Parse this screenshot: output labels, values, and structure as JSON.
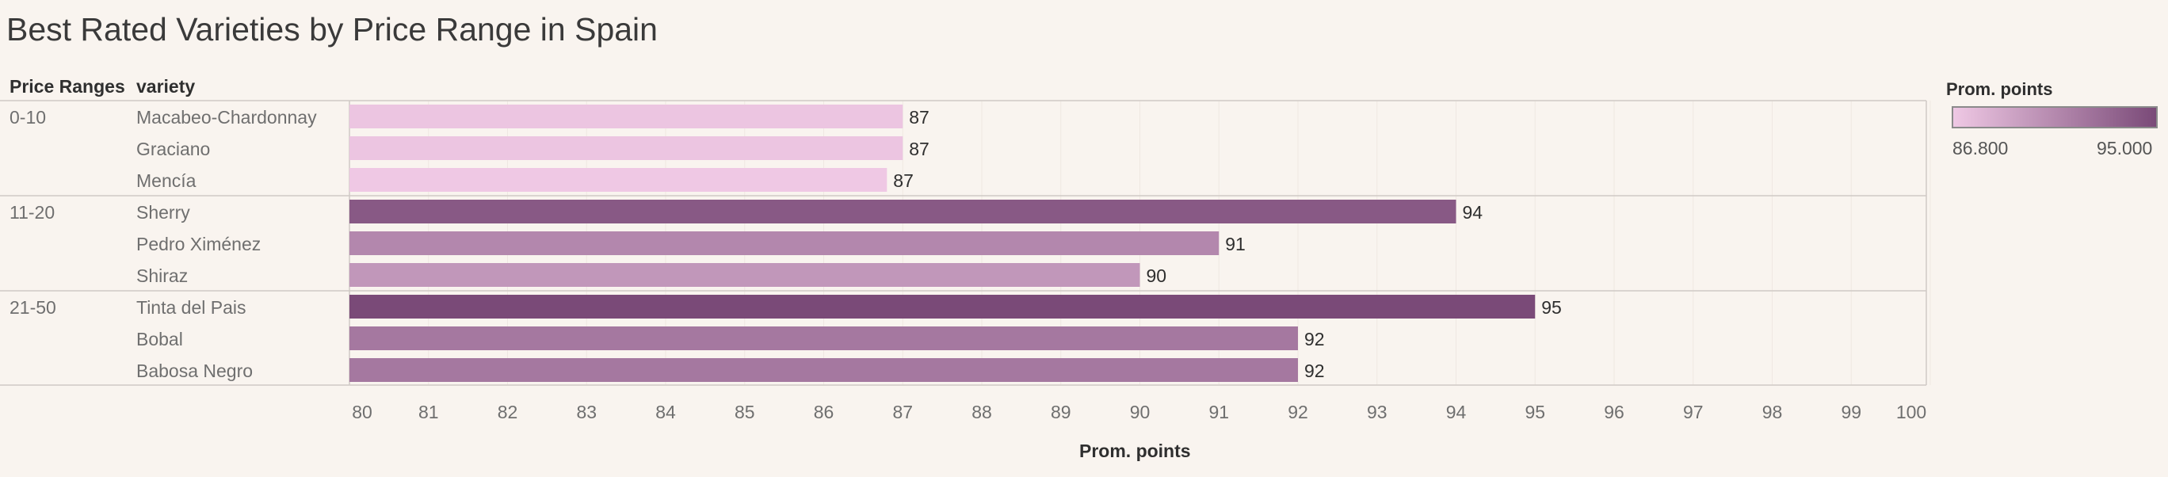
{
  "chart_data": {
    "type": "bar",
    "orientation": "horizontal",
    "title": "Best Rated Varieties by Price Range in Spain",
    "row_headers": [
      "Price Ranges",
      "variety"
    ],
    "xlabel": "Prom. points",
    "xlim": [
      80,
      100
    ],
    "x_ticks": [
      "80",
      "81",
      "82",
      "83",
      "84",
      "85",
      "86",
      "87",
      "88",
      "89",
      "90",
      "91",
      "92",
      "93",
      "94",
      "95",
      "96",
      "97",
      "98",
      "99",
      "100"
    ],
    "grid": "vertical",
    "groups": [
      {
        "label": "0-10",
        "rows": [
          {
            "variety": "Macabeo-Chardonnay",
            "value": 87.0,
            "label": "87"
          },
          {
            "variety": "Graciano",
            "value": 87.0,
            "label": "87"
          },
          {
            "variety": "Mencía",
            "value": 86.8,
            "label": "87"
          }
        ]
      },
      {
        "label": "11-20",
        "rows": [
          {
            "variety": "Sherry",
            "value": 94.0,
            "label": "94"
          },
          {
            "variety": "Pedro Ximénez",
            "value": 91.0,
            "label": "91"
          },
          {
            "variety": "Shiraz",
            "value": 90.0,
            "label": "90"
          }
        ]
      },
      {
        "label": "21-50",
        "rows": [
          {
            "variety": "Tinta del Pais",
            "value": 95.0,
            "label": "95"
          },
          {
            "variety": "Bobal",
            "value": 92.0,
            "label": "92"
          },
          {
            "variety": "Babosa Negro",
            "value": 92.0,
            "label": "92"
          }
        ]
      }
    ],
    "color_legend": {
      "title": "Prom. points",
      "min_label": "86.800",
      "max_label": "95.000",
      "min_value": 86.8,
      "max_value": 95.0,
      "min_color": "#efc8e4",
      "max_color": "#7a4a78",
      "placement": "right"
    }
  }
}
